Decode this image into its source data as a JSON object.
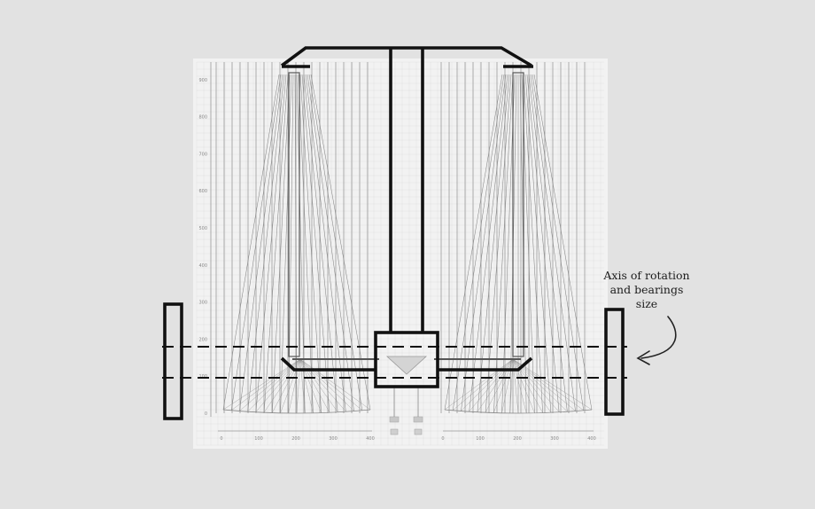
{
  "annotation": {
    "line1": "Axis of rotation",
    "line2": "and bearings",
    "line3": "size"
  },
  "y_ticks": [
    "0",
    "100",
    "200",
    "300",
    "400",
    "500",
    "600",
    "700",
    "800",
    "900"
  ],
  "x_ticks": [
    "0",
    "100",
    "200",
    "300",
    "400"
  ],
  "colors": {
    "background": "#e2e2e2",
    "plot_background": "#f2f2f2",
    "frame": "#111111",
    "ray": "#777777",
    "grid": "#c9c9c9"
  }
}
